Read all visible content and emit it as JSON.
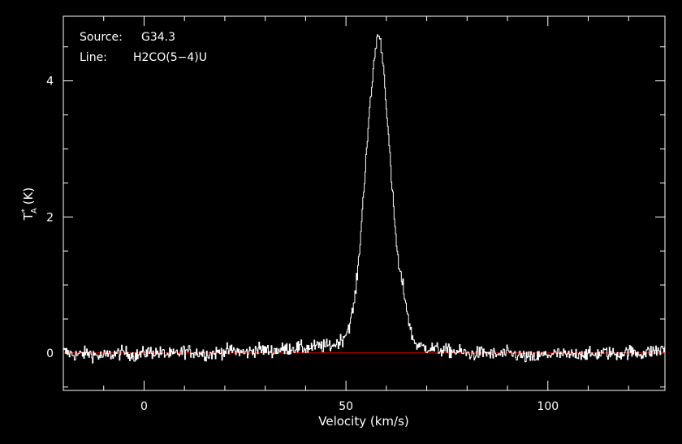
{
  "annotations": {
    "source_key": "Source:",
    "source_value": "G34.3",
    "line_key": "Line:",
    "line_value": "H2CO(5−4)U"
  },
  "chart_data": {
    "type": "line",
    "title": "",
    "xlabel": "Velocity (km/s)",
    "ylabel": "T*A (K)",
    "ylabel_parts": {
      "base": "T",
      "sup": "*",
      "sub": "A",
      "unit": "(K)"
    },
    "xlim": [
      -20,
      129
    ],
    "ylim": [
      -0.55,
      4.95
    ],
    "x_ticks": [
      0,
      50,
      100
    ],
    "y_ticks": [
      0,
      2,
      4
    ],
    "x_tick_labels": [
      "0",
      "50",
      "100"
    ],
    "y_tick_labels": [
      "0",
      "2",
      "4"
    ],
    "grid": false,
    "legend": "none",
    "colors": {
      "background": "#000000",
      "spectrum": "#ffffff",
      "baseline": "#ff0000",
      "axes": "#ffffff"
    },
    "series": [
      {
        "values_description": "",
        "x": [
          -20,
          -17,
          -14,
          -11,
          -8,
          -5,
          -2,
          1,
          4,
          7,
          10,
          13,
          16,
          19,
          22,
          25,
          28,
          31,
          34,
          37,
          40,
          43,
          45,
          47,
          48,
          49,
          50,
          51,
          52,
          53,
          54,
          55,
          56,
          57,
          57.5,
          58,
          58.5,
          59,
          60,
          61,
          62,
          63,
          64,
          65,
          66,
          67,
          68,
          70,
          72,
          75,
          78,
          81,
          84,
          87,
          90,
          93,
          96,
          99,
          102,
          105,
          108,
          111,
          114,
          117,
          120,
          123,
          126,
          129
        ],
        "y": [
          0.02,
          -0.03,
          0.0,
          -0.05,
          -0.02,
          0.01,
          -0.04,
          0.02,
          0.0,
          -0.03,
          0.03,
          0.01,
          -0.02,
          0.02,
          0.04,
          0.0,
          0.06,
          0.03,
          0.05,
          0.08,
          0.07,
          0.1,
          0.1,
          0.12,
          0.16,
          0.2,
          0.3,
          0.45,
          0.75,
          1.3,
          2.1,
          3.0,
          3.7,
          4.35,
          4.6,
          4.7,
          4.55,
          4.35,
          3.6,
          2.7,
          1.9,
          1.25,
          1.0,
          0.65,
          0.3,
          0.15,
          0.1,
          0.08,
          0.06,
          0.03,
          0.02,
          -0.02,
          0.01,
          -0.03,
          0.0,
          -0.04,
          -0.08,
          -0.03,
          -0.01,
          -0.04,
          0.0,
          -0.03,
          0.01,
          -0.02,
          0.02,
          -0.01,
          0.03,
          0.05
        ]
      }
    ],
    "baseline": 0
  }
}
